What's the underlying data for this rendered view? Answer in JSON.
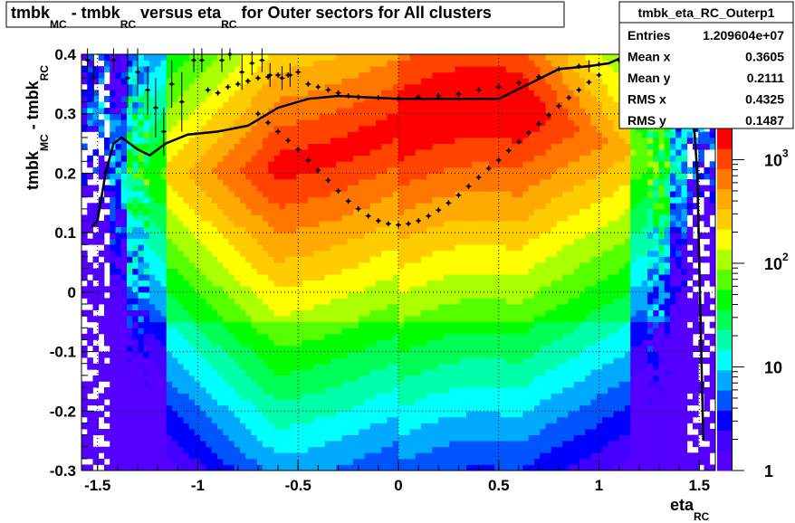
{
  "title": {
    "p1": "tmbk",
    "s1": "MC",
    "p2": " - tmbk",
    "s2": "RC",
    "p3": " versus eta",
    "s3": "RC",
    "p4": " for Outer sectors for All clusters"
  },
  "stats": {
    "name": "tmbk_eta_RC_Outerp1",
    "rows": [
      {
        "key": "Entries",
        "value": "1.209604e+07"
      },
      {
        "key": "Mean x",
        "value": "0.3605"
      },
      {
        "key": "Mean y",
        "value": "0.2111"
      },
      {
        "key": "RMS x",
        "value": "0.4325"
      },
      {
        "key": "RMS y",
        "value": "0.1487"
      }
    ]
  },
  "chart_data": {
    "type": "heatmap",
    "xlabel_main": "eta",
    "xlabel_sub": "RC",
    "ylabel_main": "tmbk",
    "ylabel_sub1": "MC",
    "ylabel_mid": " - tmbk",
    "ylabel_sub2": "RC",
    "xlim": [
      -1.58,
      1.58
    ],
    "ylim": [
      -0.3,
      0.4
    ],
    "x_ticks": [
      "-1.5",
      "-1",
      "-0.5",
      "0",
      "0.5",
      "1",
      "1.5"
    ],
    "y_ticks": [
      "-0.3",
      "-0.2",
      "-0.1",
      "0",
      "0.1",
      "0.2",
      "0.3",
      "0.4"
    ],
    "z_scale": "log",
    "z_range": [
      1,
      2000
    ],
    "z_ticks": [
      {
        "value": 1,
        "mant": "1",
        "exp": ""
      },
      {
        "value": 10,
        "mant": "10",
        "exp": ""
      },
      {
        "value": 100,
        "mant": "10",
        "exp": "2"
      },
      {
        "value": 1000,
        "mant": "10",
        "exp": "3"
      }
    ],
    "grid": true,
    "palette": [
      "#5500ff",
      "#4400ff",
      "#0000ff",
      "#0055ff",
      "#00aaff",
      "#00ffff",
      "#00ffaa",
      "#00ff55",
      "#00ff00",
      "#55ff00",
      "#aaff00",
      "#ffff00",
      "#ffcc00",
      "#ffaa00",
      "#ff7700",
      "#ff4400",
      "#ff0000"
    ],
    "profile_mean": [
      {
        "x": -1.53,
        "y": 0.11
      },
      {
        "x": -1.5,
        "y": 0.12
      },
      {
        "x": -1.46,
        "y": 0.2
      },
      {
        "x": -1.42,
        "y": 0.25
      },
      {
        "x": -1.38,
        "y": 0.26
      },
      {
        "x": -1.3,
        "y": 0.24
      },
      {
        "x": -1.24,
        "y": 0.23
      },
      {
        "x": -1.16,
        "y": 0.25
      },
      {
        "x": -1.05,
        "y": 0.265
      },
      {
        "x": -0.9,
        "y": 0.27
      },
      {
        "x": -0.75,
        "y": 0.28
      },
      {
        "x": -0.6,
        "y": 0.31
      },
      {
        "x": -0.45,
        "y": 0.325
      },
      {
        "x": -0.3,
        "y": 0.33
      },
      {
        "x": 0.0,
        "y": 0.325
      },
      {
        "x": 0.3,
        "y": 0.325
      },
      {
        "x": 0.5,
        "y": 0.325
      },
      {
        "x": 0.65,
        "y": 0.35
      },
      {
        "x": 0.8,
        "y": 0.375
      },
      {
        "x": 0.95,
        "y": 0.38
      },
      {
        "x": 1.05,
        "y": 0.385
      },
      {
        "x": 1.15,
        "y": 0.4
      },
      {
        "x": 1.42,
        "y": 0.4
      },
      {
        "x": 1.46,
        "y": 0.35
      },
      {
        "x": 1.49,
        "y": 0.2
      },
      {
        "x": 1.52,
        "y": -0.25
      }
    ],
    "profile_upper": [
      {
        "x": -0.95,
        "y": 0.34
      },
      {
        "x": -0.9,
        "y": 0.335
      },
      {
        "x": -0.85,
        "y": 0.345
      },
      {
        "x": -0.8,
        "y": 0.35
      },
      {
        "x": -0.75,
        "y": 0.355
      },
      {
        "x": -0.7,
        "y": 0.36
      },
      {
        "x": -0.65,
        "y": 0.362
      },
      {
        "x": -0.6,
        "y": 0.365
      },
      {
        "x": -0.55,
        "y": 0.365
      },
      {
        "x": -0.5,
        "y": 0.37
      },
      {
        "x": -0.45,
        "y": 0.35
      },
      {
        "x": -0.4,
        "y": 0.345
      },
      {
        "x": -0.35,
        "y": 0.34
      },
      {
        "x": -0.3,
        "y": 0.335
      },
      {
        "x": -0.25,
        "y": 0.33
      },
      {
        "x": -0.2,
        "y": 0.328
      },
      {
        "x": -0.1,
        "y": 0.327
      },
      {
        "x": 0.0,
        "y": 0.326
      },
      {
        "x": 0.1,
        "y": 0.328
      },
      {
        "x": 0.2,
        "y": 0.33
      },
      {
        "x": 0.3,
        "y": 0.333
      },
      {
        "x": 0.4,
        "y": 0.34
      },
      {
        "x": 0.5,
        "y": 0.345
      },
      {
        "x": 0.6,
        "y": 0.352
      },
      {
        "x": 0.7,
        "y": 0.362
      },
      {
        "x": 0.8,
        "y": 0.375
      },
      {
        "x": 0.9,
        "y": 0.38
      },
      {
        "x": 1.0,
        "y": 0.383
      },
      {
        "x": 1.1,
        "y": 0.39
      }
    ],
    "profile_lower": [
      {
        "x": -0.7,
        "y": 0.3
      },
      {
        "x": -0.65,
        "y": 0.285
      },
      {
        "x": -0.6,
        "y": 0.27
      },
      {
        "x": -0.55,
        "y": 0.255
      },
      {
        "x": -0.5,
        "y": 0.24
      },
      {
        "x": -0.45,
        "y": 0.222
      },
      {
        "x": -0.4,
        "y": 0.205
      },
      {
        "x": -0.35,
        "y": 0.188
      },
      {
        "x": -0.3,
        "y": 0.17
      },
      {
        "x": -0.25,
        "y": 0.153
      },
      {
        "x": -0.2,
        "y": 0.14
      },
      {
        "x": -0.15,
        "y": 0.128
      },
      {
        "x": -0.1,
        "y": 0.12
      },
      {
        "x": -0.05,
        "y": 0.115
      },
      {
        "x": 0.0,
        "y": 0.113
      },
      {
        "x": 0.05,
        "y": 0.115
      },
      {
        "x": 0.1,
        "y": 0.12
      },
      {
        "x": 0.15,
        "y": 0.128
      },
      {
        "x": 0.2,
        "y": 0.138
      },
      {
        "x": 0.25,
        "y": 0.15
      },
      {
        "x": 0.3,
        "y": 0.163
      },
      {
        "x": 0.35,
        "y": 0.178
      },
      {
        "x": 0.4,
        "y": 0.193
      },
      {
        "x": 0.45,
        "y": 0.208
      },
      {
        "x": 0.5,
        "y": 0.222
      },
      {
        "x": 0.55,
        "y": 0.238
      },
      {
        "x": 0.6,
        "y": 0.253
      },
      {
        "x": 0.65,
        "y": 0.268
      },
      {
        "x": 0.7,
        "y": 0.283
      },
      {
        "x": 0.75,
        "y": 0.298
      },
      {
        "x": 0.8,
        "y": 0.313
      },
      {
        "x": 0.85,
        "y": 0.327
      },
      {
        "x": 0.9,
        "y": 0.34
      },
      {
        "x": 0.95,
        "y": 0.353
      },
      {
        "x": 1.0,
        "y": 0.365
      }
    ],
    "scatter_points": [
      {
        "x": -1.55,
        "y": 0.39,
        "err": 0.02
      },
      {
        "x": -1.52,
        "y": 0.36,
        "err": 0.04
      },
      {
        "x": -1.42,
        "y": 0.39,
        "err": 0.02
      },
      {
        "x": -1.35,
        "y": 0.36,
        "err": 0.05
      },
      {
        "x": -1.3,
        "y": 0.37,
        "err": 0.04
      },
      {
        "x": -1.25,
        "y": 0.34,
        "err": 0.04
      },
      {
        "x": -1.21,
        "y": 0.31,
        "err": 0.05
      },
      {
        "x": -1.17,
        "y": 0.27,
        "err": 0.04
      },
      {
        "x": -1.13,
        "y": 0.35,
        "err": 0.04
      },
      {
        "x": -1.08,
        "y": 0.32,
        "err": 0.05
      },
      {
        "x": -1.02,
        "y": 0.39,
        "err": 0.02
      },
      {
        "x": -0.98,
        "y": 0.39,
        "err": 0.02
      },
      {
        "x": -0.88,
        "y": 0.39,
        "err": 0.02
      },
      {
        "x": -0.84,
        "y": 0.4,
        "err": 0.01
      },
      {
        "x": -0.78,
        "y": 0.37,
        "err": 0.03
      },
      {
        "x": -0.73,
        "y": 0.385,
        "err": 0.02
      },
      {
        "x": -0.68,
        "y": 0.39,
        "err": 0.02
      },
      {
        "x": -0.64,
        "y": 0.365,
        "err": 0.02
      },
      {
        "x": -0.58,
        "y": 0.36,
        "err": 0.02
      },
      {
        "x": -0.54,
        "y": 0.365,
        "err": 0.02
      },
      {
        "x": 0.95,
        "y": 0.38,
        "err": 0.01
      },
      {
        "x": 1.15,
        "y": 0.375,
        "err": 0.02
      },
      {
        "x": 1.34,
        "y": 0.39,
        "err": 0.02
      }
    ]
  }
}
